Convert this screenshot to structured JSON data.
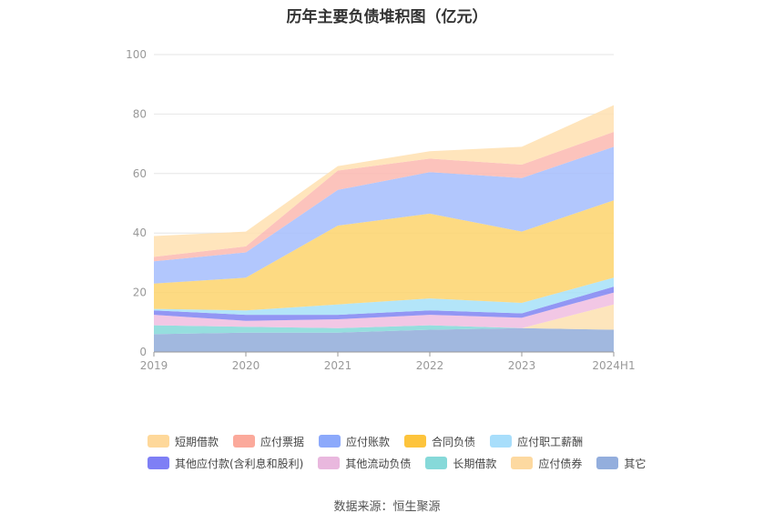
{
  "chart_data": {
    "type": "area",
    "stacked": true,
    "title": "历年主要负债堆积图（亿元）",
    "source": "数据来源：恒生聚源",
    "categories": [
      "2019",
      "2020",
      "2021",
      "2022",
      "2023",
      "2024H1"
    ],
    "ylim": [
      0,
      100
    ],
    "yticks": [
      0,
      20,
      40,
      60,
      80,
      100
    ],
    "grid": true,
    "legend_position": "bottom",
    "series": [
      {
        "name": "其它",
        "color": "#91acd9",
        "values": [
          6,
          6.5,
          6.5,
          7.5,
          8,
          7.5
        ]
      },
      {
        "name": "应付债券",
        "color": "#fde0b0",
        "values": [
          0,
          0,
          0,
          0,
          0,
          8.5
        ]
      },
      {
        "name": "长期借款",
        "color": "#84d8d8",
        "values": [
          3,
          2,
          1.5,
          1.5,
          0,
          0
        ]
      },
      {
        "name": "其他流动负债",
        "color": "#f0bde0",
        "values": [
          3.5,
          2,
          3,
          3.5,
          3.5,
          4
        ]
      },
      {
        "name": "其他应付款(含利息和股利)",
        "color": "#7f84f2",
        "values": [
          1.5,
          2,
          1.5,
          1.5,
          1.5,
          2
        ]
      },
      {
        "name": "应付职工薪酬",
        "color": "#a6e0f8",
        "values": [
          0.5,
          1.5,
          3.5,
          4,
          3.5,
          3
        ]
      },
      {
        "name": "合同负债",
        "color": "#fdd36c",
        "values": [
          8.5,
          11,
          26.5,
          28.5,
          24,
          26
        ]
      },
      {
        "name": "应付账款",
        "color": "#a4bdfd",
        "values": [
          7.5,
          8.5,
          12,
          14,
          18,
          18
        ]
      },
      {
        "name": "应付票据",
        "color": "#fbb8b0",
        "values": [
          1.5,
          2,
          6.5,
          4.5,
          4.5,
          5
        ]
      },
      {
        "name": "短期借款",
        "color": "#ffe0b0",
        "values": [
          7,
          5,
          1.5,
          2.5,
          6,
          9
        ]
      }
    ]
  },
  "legend": {
    "row1": [
      {
        "label": "短期借款",
        "color": "#fed89a"
      },
      {
        "label": "应付票据",
        "color": "#fba99b"
      },
      {
        "label": "应付账款",
        "color": "#8ca9fb"
      },
      {
        "label": "合同负债",
        "color": "#fdc43c"
      },
      {
        "label": "应付职工薪酬",
        "color": "#a8defb"
      }
    ],
    "row2": [
      {
        "label": "其他应付款(含利息和股利)",
        "color": "#7e7ff5"
      },
      {
        "label": "其他流动负债",
        "color": "#e9b8de"
      },
      {
        "label": "长期借款",
        "color": "#86d9d9"
      },
      {
        "label": "应付债券",
        "color": "#fdd9a0"
      },
      {
        "label": "其它",
        "color": "#93aedd"
      }
    ]
  }
}
